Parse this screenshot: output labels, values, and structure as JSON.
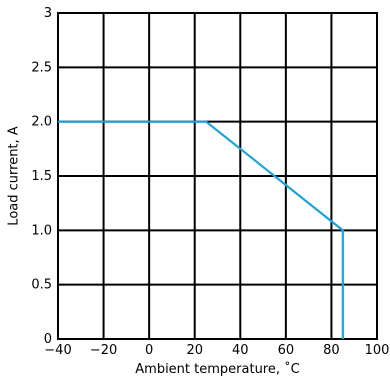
{
  "chart_data": {
    "type": "line",
    "title": "",
    "xlabel": "Ambient temperature, ˚C",
    "ylabel": "Load current, A",
    "xlim": [
      -40,
      100
    ],
    "ylim": [
      0,
      3
    ],
    "x_ticks": [
      -40,
      -20,
      0,
      20,
      40,
      60,
      80,
      100
    ],
    "x_tick_labels": [
      "−40",
      "−20",
      "0",
      "20",
      "40",
      "60",
      "80",
      "100"
    ],
    "y_ticks": [
      0,
      0.5,
      1.0,
      1.5,
      2.0,
      2.5,
      3
    ],
    "y_tick_labels": [
      "0",
      "0.5",
      "1.0",
      "1.5",
      "2.0",
      "2.5",
      "3"
    ],
    "grid": true,
    "series": [
      {
        "color": "#1aa3dc",
        "x": [
          -40,
          25,
          85,
          85
        ],
        "y": [
          2.0,
          2.0,
          1.0,
          0
        ]
      }
    ]
  }
}
